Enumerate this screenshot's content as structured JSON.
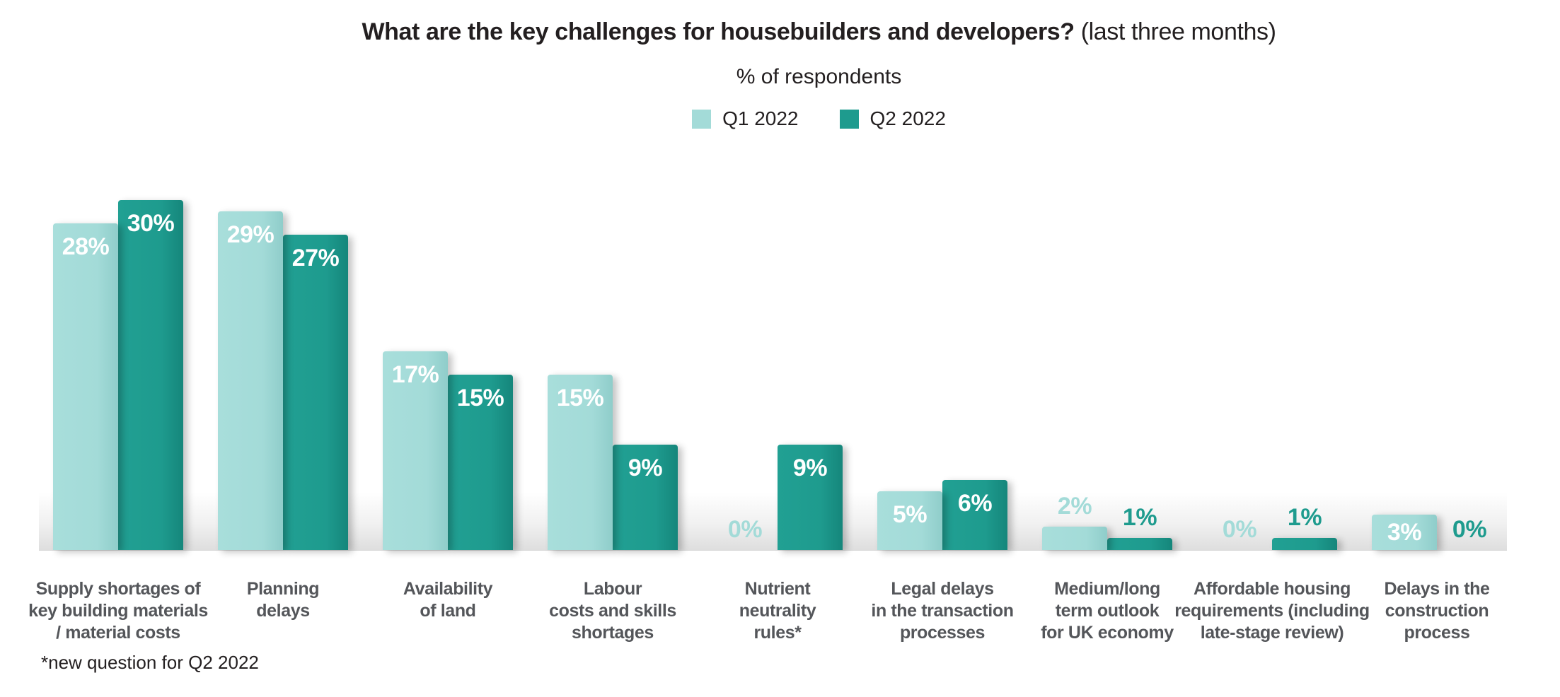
{
  "header": {
    "title_bold": "What are the key challenges for housebuilders and developers?",
    "title_regular": "(last three months)",
    "subtitle": "% of respondents"
  },
  "footnote": "*new question for Q2 2022",
  "colors": {
    "q1_series": "#A3DBD8",
    "q2_series": "#1E9B8E",
    "value_label_inside": "#FFFFFF",
    "category_label": "#54565A",
    "title_text": "#231F20",
    "floor_gradient_gray": "#DEDEDE",
    "background": "#FFFFFF"
  },
  "chart_data": {
    "type": "bar",
    "title": "What are the key challenges for housebuilders and developers? (last three months)",
    "subtitle": "% of respondents",
    "unit": "%",
    "ylim": [
      0,
      30
    ],
    "grid": false,
    "y_axis_shown": false,
    "legend_position": "top-center",
    "value_label_rule": "inside-top in white when value >= 3%, above bar in series color when value < 3%",
    "categories": [
      "Supply shortages of\nkey building materials\n/ material costs",
      "Planning\ndelays",
      "Availability\nof land",
      "Labour\ncosts and skills\nshortages",
      "Nutrient\nneutrality\nrules*",
      "Legal delays\nin the transaction\nprocesses",
      "Medium/long\nterm outlook\nfor UK economy",
      "Affordable housing\nrequirements (including\nlate-stage review)",
      "Delays in the\nconstruction\nprocess"
    ],
    "series": [
      {
        "name": "Q1 2022",
        "color": "#A3DBD8",
        "values": [
          28,
          29,
          17,
          15,
          0,
          5,
          2,
          0,
          3
        ]
      },
      {
        "name": "Q2 2022",
        "color": "#1E9B8E",
        "values": [
          30,
          27,
          15,
          9,
          9,
          6,
          1,
          1,
          0
        ]
      }
    ]
  }
}
